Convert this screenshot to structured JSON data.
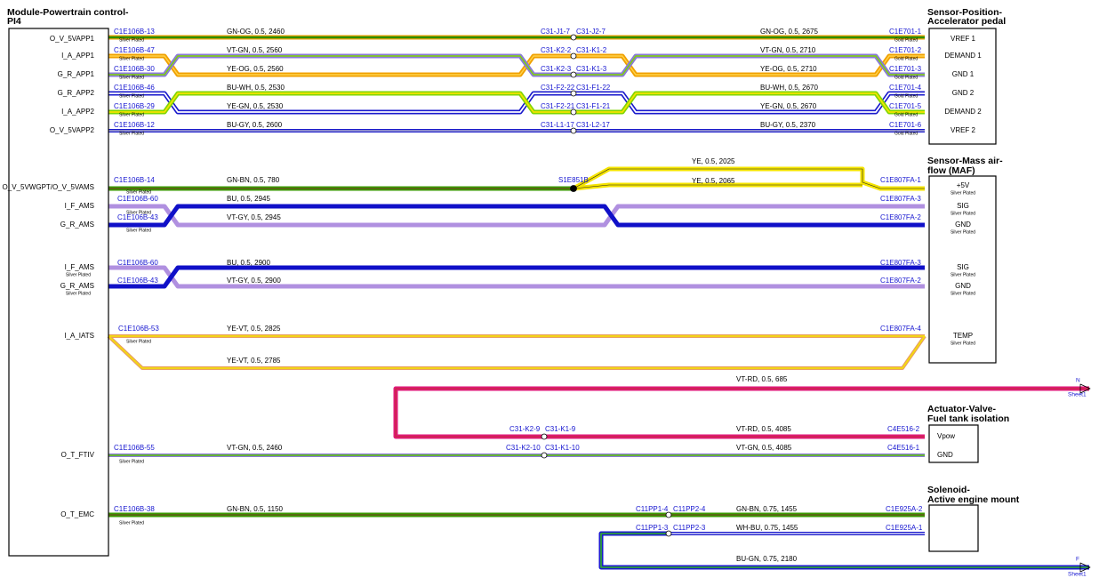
{
  "components": [
    {
      "title": [
        "Module-Powertrain control-",
        "PI4"
      ],
      "pins": [
        {
          "name": "O_V_5VAPP1"
        },
        {
          "name": "I_A_APP1"
        },
        {
          "name": "G_R_APP1"
        },
        {
          "name": "G_R_APP2"
        },
        {
          "name": "I_A_APP2"
        },
        {
          "name": "O_V_5VAPP2"
        },
        {
          "name": "O_V_5VWGPT/O_V_5VAMS"
        },
        {
          "name": "I_F_AMS"
        },
        {
          "name": "G_R_AMS"
        },
        {
          "name": "I_F_AMS",
          "note": "Silver Plated"
        },
        {
          "name": "G_R_AMS",
          "note": "Silver Plated"
        },
        {
          "name": "I_A_IATS"
        },
        {
          "name": "O_T_FTIV"
        },
        {
          "name": "O_T_EMC"
        }
      ]
    },
    {
      "title": [
        "Sensor-Position-",
        "Accelerator pedal"
      ],
      "pins": [
        {
          "name": "VREF 1"
        },
        {
          "name": "DEMAND 1"
        },
        {
          "name": "GND 1"
        },
        {
          "name": "GND 2"
        },
        {
          "name": "DEMAND 2"
        },
        {
          "name": "VREF 2"
        }
      ]
    },
    {
      "title": [
        "Sensor-Mass air-",
        "flow (MAF)"
      ],
      "pins": [
        {
          "name": "+5V",
          "note": "Silver Plated"
        },
        {
          "name": "SIG",
          "note": "Silver Plated"
        },
        {
          "name": "GND",
          "note": "Silver Plated"
        },
        {
          "name": "SIG",
          "note": "Silver Plated"
        },
        {
          "name": "GND",
          "note": "Silver Plated"
        },
        {
          "name": "TEMP",
          "note": "Silver Plated"
        }
      ]
    },
    {
      "title": [
        "Actuator-Valve-",
        "Fuel tank isolation"
      ],
      "pins": [
        {
          "name": "Vpow"
        },
        {
          "name": "GND"
        }
      ]
    },
    {
      "title": [
        "Solenoid-",
        "Active engine mount"
      ],
      "pins": []
    }
  ],
  "wires": [
    {
      "labels": [
        "C1E106B-13",
        "Silver Plated",
        "GN-OG,  0.5,  2460",
        "C31-J1-7",
        "C31-J2-7",
        "GN-OG,  0.5,  2675",
        "C1E701-1",
        "Gold Plated"
      ]
    },
    {
      "labels": [
        "C1E106B-47",
        "Silver Plated",
        "VT-GN,  0.5,  2560",
        "C31-K2-2",
        "C31-K1-2",
        "VT-GN,  0.5,  2710",
        "C1E701-2",
        "Gold Plated"
      ]
    },
    {
      "labels": [
        "C1E106B-30",
        "Silver Plated",
        "YE-OG,  0.5,  2560",
        "C31-K2-3",
        "C31-K1-3",
        "YE-OG,  0.5,  2710",
        "C1E701-3",
        "Gold Plated"
      ]
    },
    {
      "labels": [
        "C1E106B-46",
        "Silver Plated",
        "BU-WH,  0.5,  2530",
        "C31-F2-22",
        "C31-F1-22",
        "BU-WH,  0.5,  2670",
        "C1E701-4",
        "Gold Plated"
      ]
    },
    {
      "labels": [
        "C1E106B-29",
        "Silver Plated",
        "YE-GN,  0.5,  2530",
        "C31-F2-21",
        "C31-F1-21",
        "YE-GN,  0.5,  2670",
        "C1E701-5",
        "Gold Plated"
      ]
    },
    {
      "labels": [
        "C1E106B-12",
        "Silver Plated",
        "BU-GY,  0.5,  2600",
        "C31-L1-17",
        "C31-L2-17",
        "BU-GY,  0.5,  2370",
        "C1E701-6",
        "Gold Plated"
      ]
    },
    {
      "labels": [
        "C1E106B-14",
        "Silver Plated",
        "GN-BN,  0.5,  780",
        "S1E851B",
        "YE,  0.5,  2025",
        "YE,  0.5,  2065",
        "C1E807FA-1"
      ]
    },
    {
      "labels": [
        "C1E106B-60",
        "Silver Plated",
        "BU,  0.5,  2945",
        "C1E807FA-3"
      ]
    },
    {
      "labels": [
        "C1E106B-43",
        "Silver Plated",
        "VT-GY,  0.5,  2945",
        "C1E807FA-2"
      ]
    },
    {
      "labels": [
        "C1E106B-60",
        "BU,  0.5,  2900",
        "C1E807FA-3"
      ]
    },
    {
      "labels": [
        "C1E106B-43",
        "VT-GY,  0.5,  2900",
        "C1E807FA-2"
      ]
    },
    {
      "labels": [
        "C1E106B-53",
        "Silver Plated",
        "YE-VT,  0.5,  2825",
        "YE-VT,  0.5,  2785",
        "C1E807FA-4"
      ]
    },
    {
      "labels": [
        "VT-RD,  0.5,  685",
        "N",
        "Sheet1"
      ]
    },
    {
      "labels": [
        "C31-K2-9",
        "C31-K1-9",
        "VT-RD,  0.5,  4085",
        "C4E516-2"
      ]
    },
    {
      "labels": [
        "C1E106B-55",
        "Silver Plated",
        "VT-GN,  0.5,  2460",
        "C31-K2-10",
        "C31-K1-10",
        "VT-GN,  0.5,  4085",
        "C4E516-1"
      ]
    },
    {
      "labels": [
        "C1E106B-38",
        "Silver Plated",
        "GN-BN,  0.5,  1150",
        "C11PP1-4",
        "C11PP2-4",
        "GN-BN,  0.75,  1455",
        "C1E925A-2"
      ]
    },
    {
      "labels": [
        "C11PP1-3",
        "C11PP2-3",
        "WH-BU,  0.75,  1455",
        "C1E925A-1"
      ]
    },
    {
      "labels": [
        "BU-GN,  0.75,  2180",
        "F",
        "Sheet1"
      ]
    }
  ]
}
